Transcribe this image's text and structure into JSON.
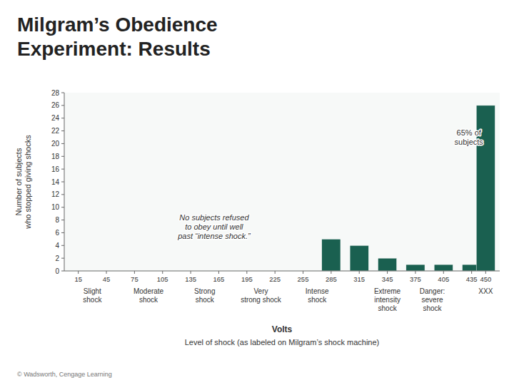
{
  "chart_data": {
    "type": "bar",
    "title": "Milgram’s Obedience\nExperiment: Results",
    "ylabel": "Number of subjects\nwho stopped giving shocks",
    "xlabel": "Volts",
    "xlabel_sub": "Level of shock (as labeled on Milgram’s shock machine)",
    "copyright": "© Wadsworth, Cengage Learning",
    "x": [
      15,
      45,
      75,
      105,
      135,
      165,
      195,
      225,
      255,
      285,
      315,
      345,
      375,
      405,
      435,
      450
    ],
    "values": [
      0,
      0,
      0,
      0,
      0,
      0,
      0,
      0,
      0,
      5,
      4,
      2,
      1,
      1,
      1,
      26
    ],
    "color": "#1a6050",
    "xlim": [
      0,
      465
    ],
    "xticks": [
      15,
      45,
      75,
      105,
      135,
      165,
      195,
      225,
      255,
      285,
      315,
      345,
      375,
      405,
      435,
      450
    ],
    "ylim": [
      0,
      28
    ],
    "yticks": [
      0,
      2,
      4,
      6,
      8,
      10,
      12,
      14,
      16,
      18,
      20,
      22,
      24,
      26,
      28
    ],
    "grid": false,
    "annotations": [
      {
        "text": "No subjects refused\nto obey until well\npast “intense shock.”",
        "x": 160,
        "y": 7
      },
      {
        "text": "65% of\nsubjects",
        "x": 432,
        "y": 21
      }
    ],
    "shock_labels": [
      {
        "text": "Slight\nshock",
        "x": 30
      },
      {
        "text": "Moderate\nshock",
        "x": 90
      },
      {
        "text": "Strong\nshock",
        "x": 150
      },
      {
        "text": "Very\nstrong shock",
        "x": 210
      },
      {
        "text": "Intense\nshock",
        "x": 270
      },
      {
        "text": "Extreme\nintensity\nshock",
        "x": 345
      },
      {
        "text": "Danger:\nsevere\nshock",
        "x": 393
      },
      {
        "text": "XXX",
        "x": 450
      }
    ]
  }
}
